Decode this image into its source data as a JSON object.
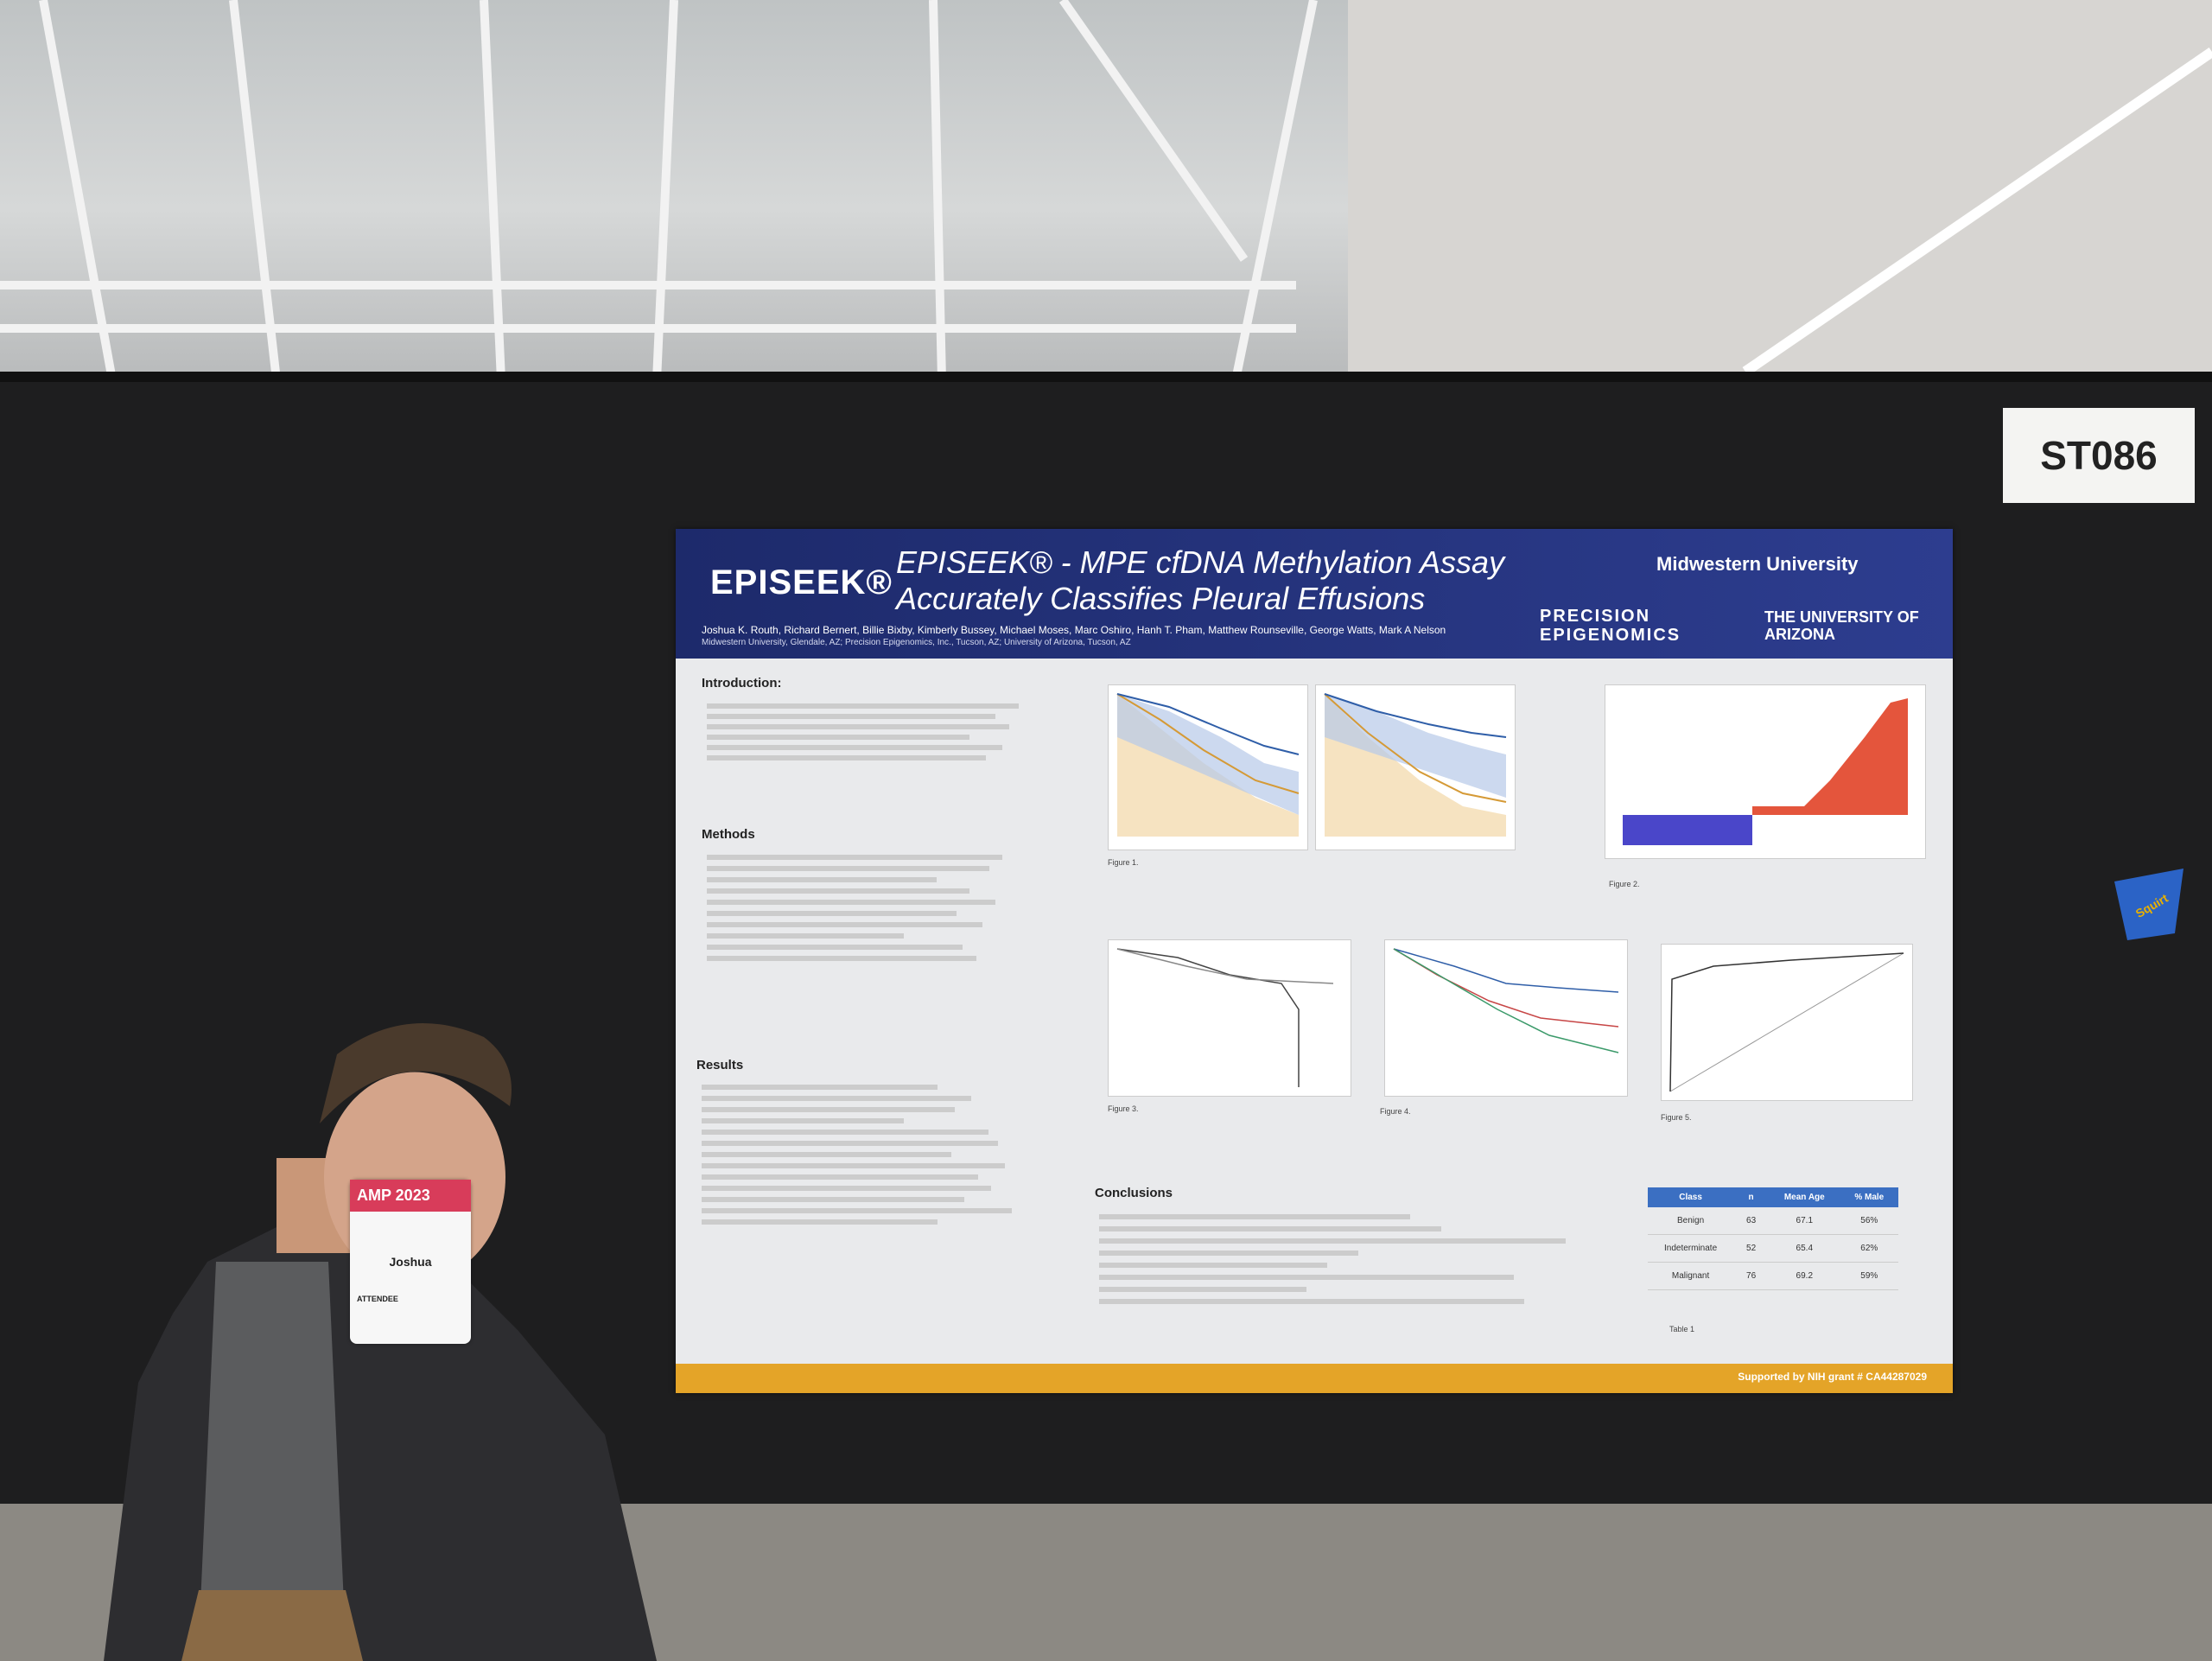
{
  "booth": {
    "label": "ST086"
  },
  "poster": {
    "logo": "EPISEEK®",
    "title_line1": "EPISEEK® - MPE cfDNA Methylation Assay",
    "title_line2": "Accurately Classifies Pleural Effusions",
    "authors": "Joshua K. Routh, Richard Bernert, Billie Bixby, Kimberly Bussey, Michael Moses, Marc Oshiro, Hanh T. Pham, Matthew Rounseville, George Watts, Mark A Nelson",
    "affiliations": "Midwestern University, Glendale, AZ; Precision Epigenomics, Inc., Tucson, AZ; University of Arizona, Tucson, AZ",
    "institutions": [
      "Midwestern University",
      "PRECISION EPIGENOMICS",
      "THE UNIVERSITY OF ARIZONA"
    ],
    "sections": {
      "intro": "Introduction:",
      "methods": "Methods",
      "results": "Results",
      "conclusions": "Conclusions"
    },
    "figure_captions": [
      "Figure 1.",
      "Figure 2.",
      "Figure 3.",
      "Figure 4.",
      "Figure 5.",
      "Table 1"
    ],
    "table": {
      "headers": [
        "Class",
        "n",
        "Mean Age",
        "% Male"
      ],
      "rows": [
        [
          "Benign",
          "63",
          "67.1",
          "56%"
        ],
        [
          "Indeterminate",
          "52",
          "65.4",
          "62%"
        ],
        [
          "Malignant",
          "76",
          "69.2",
          "59%"
        ]
      ]
    },
    "footer": "Supported by NIH grant # CA44287029"
  },
  "badge": {
    "event": "AMP 2023",
    "name": "Joshua",
    "role": "ATTENDEE"
  },
  "cup": {
    "brand": "Squirt"
  },
  "colors": {
    "poster_header": "#2d3d8f",
    "footer_bar": "#e4a428",
    "board": "#1e1e1f"
  }
}
